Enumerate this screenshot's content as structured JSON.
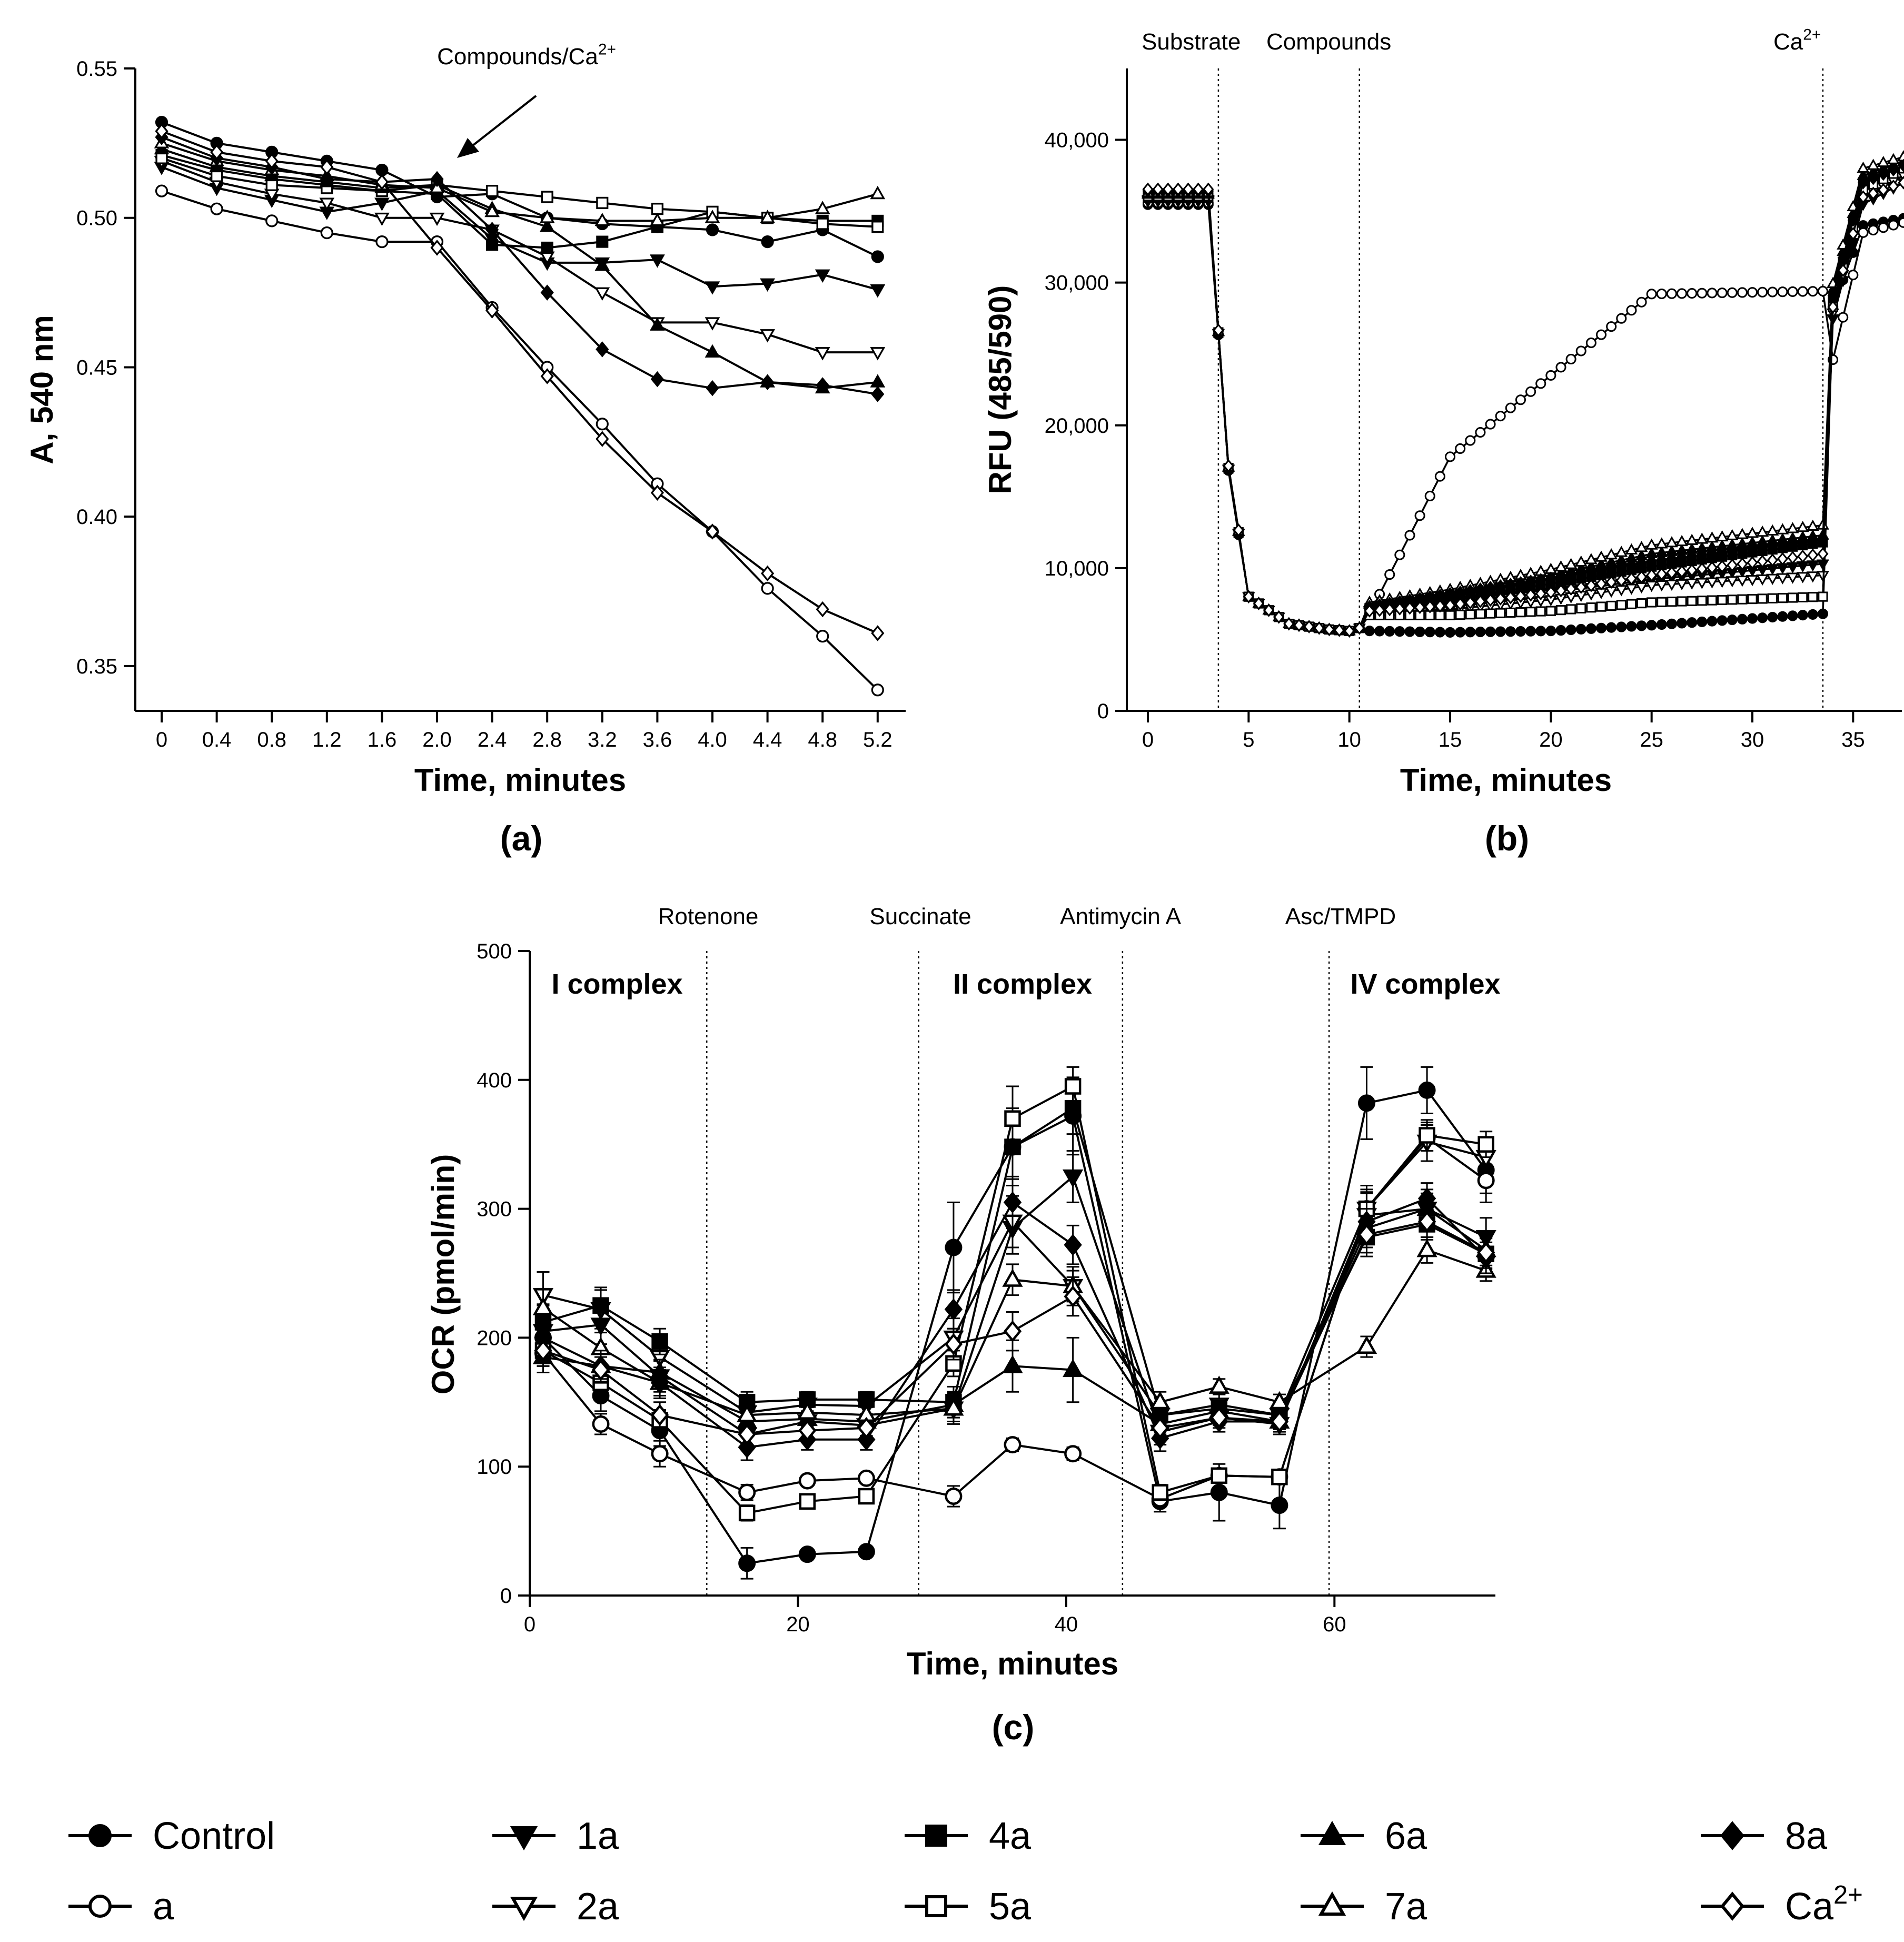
{
  "legend": {
    "entries": [
      {
        "key": "control",
        "label": "Control",
        "marker": "circle",
        "filled": true
      },
      {
        "key": "a",
        "label": "a",
        "marker": "circle",
        "filled": false
      },
      {
        "key": "1a",
        "label": "1a",
        "marker": "tri-down",
        "filled": true
      },
      {
        "key": "2a",
        "label": "2a",
        "marker": "tri-down",
        "filled": false
      },
      {
        "key": "4a",
        "label": "4a",
        "marker": "square",
        "filled": true
      },
      {
        "key": "5a",
        "label": "5a",
        "marker": "square",
        "filled": false
      },
      {
        "key": "6a",
        "label": "6a",
        "marker": "tri-up",
        "filled": true
      },
      {
        "key": "7a",
        "label": "7a",
        "marker": "tri-up",
        "filled": false
      },
      {
        "key": "8a",
        "label": "8a",
        "marker": "diamond",
        "filled": true
      },
      {
        "key": "ca",
        "label": "Ca",
        "label_sup": "2+",
        "marker": "diamond",
        "filled": false
      }
    ]
  },
  "chart_data": [
    {
      "id": "a",
      "panel_label": "(a)",
      "type": "line",
      "xlabel": "Time, minutes",
      "ylabel": "A, 540 nm",
      "ylim": [
        0.335,
        0.55
      ],
      "yticks": [
        "0.35",
        "0.40",
        "0.45",
        "0.50",
        "0.55"
      ],
      "x": [
        "0",
        "0.4",
        "0.8",
        "1.2",
        "1.6",
        "2.0",
        "2.4",
        "2.8",
        "3.2",
        "3.6",
        "4.0",
        "4.4",
        "4.8",
        "5.2"
      ],
      "annotation": {
        "text": "Compounds/Ca",
        "sup": "2+"
      },
      "series": [
        {
          "key": "control",
          "values": [
            0.532,
            0.525,
            0.522,
            0.519,
            0.516,
            0.507,
            0.508,
            0.5,
            0.498,
            0.497,
            0.496,
            0.492,
            0.496,
            0.487
          ]
        },
        {
          "key": "a",
          "values": [
            0.509,
            0.503,
            0.499,
            0.495,
            0.492,
            0.492,
            0.47,
            0.45,
            0.431,
            0.411,
            0.395,
            0.376,
            0.36,
            0.342
          ]
        },
        {
          "key": "1a",
          "values": [
            0.517,
            0.51,
            0.506,
            0.502,
            0.505,
            0.509,
            0.493,
            0.485,
            0.485,
            0.486,
            0.477,
            0.478,
            0.481,
            0.476
          ]
        },
        {
          "key": "2a",
          "values": [
            0.519,
            0.512,
            0.508,
            0.505,
            0.5,
            0.5,
            0.496,
            0.487,
            0.475,
            0.465,
            0.465,
            0.461,
            0.455,
            0.455
          ]
        },
        {
          "key": "4a",
          "values": [
            0.521,
            0.516,
            0.513,
            0.511,
            0.509,
            0.508,
            0.491,
            0.49,
            0.492,
            0.497,
            0.502,
            0.5,
            0.499,
            0.499
          ]
        },
        {
          "key": "5a",
          "values": [
            0.52,
            0.514,
            0.511,
            0.51,
            0.509,
            0.511,
            0.509,
            0.507,
            0.505,
            0.503,
            0.502,
            0.5,
            0.498,
            0.497
          ]
        },
        {
          "key": "6a",
          "values": [
            0.523,
            0.517,
            0.514,
            0.512,
            0.51,
            0.511,
            0.503,
            0.497,
            0.484,
            0.464,
            0.455,
            0.445,
            0.443,
            0.445
          ]
        },
        {
          "key": "7a",
          "values": [
            0.525,
            0.519,
            0.516,
            0.514,
            0.511,
            0.51,
            0.502,
            0.5,
            0.499,
            0.499,
            0.5,
            0.5,
            0.503,
            0.508
          ]
        },
        {
          "key": "8a",
          "values": [
            0.527,
            0.52,
            0.517,
            0.513,
            0.512,
            0.513,
            0.496,
            0.475,
            0.456,
            0.446,
            0.443,
            0.445,
            0.444,
            0.441
          ]
        },
        {
          "key": "ca",
          "values": [
            0.529,
            0.522,
            0.519,
            0.517,
            0.512,
            0.49,
            0.469,
            0.447,
            0.426,
            0.408,
            0.395,
            0.381,
            0.369,
            0.361
          ]
        }
      ]
    },
    {
      "id": "b",
      "panel_label": "(b)",
      "type": "line",
      "xlabel": "Time, minutes",
      "ylabel": "RFU (485/590)",
      "xlim": [
        0,
        37.5
      ],
      "ylim": [
        0,
        45000
      ],
      "xticks": [
        0,
        5,
        10,
        15,
        20,
        25,
        30,
        35
      ],
      "yticks": [
        0,
        10000,
        20000,
        30000,
        40000
      ],
      "ytick_labels": [
        "0",
        "10,000",
        "20,000",
        "30,000",
        "40,000"
      ],
      "vlines": [
        3.5,
        10.5,
        33.5
      ],
      "annotations": [
        {
          "text": "Substrate",
          "at": "substrate"
        },
        {
          "text": "Compounds",
          "at": "compounds"
        },
        {
          "text": "Ca",
          "sup": "2+",
          "at": "calcium"
        }
      ],
      "anchors": {
        "t": [
          0,
          3.0,
          4.0,
          5.0,
          7.0,
          9.0,
          10.0,
          10.5,
          11.0,
          15.0,
          20.0,
          25.0,
          30.0,
          33.0,
          33.5,
          34.0,
          35.0,
          36.0,
          37.5
        ],
        "shape_base": [
          36000,
          36000,
          17000,
          8000,
          6100,
          5700,
          5600,
          5800,
          6800,
          6800,
          6900,
          7000,
          7000,
          7000,
          7000,
          27500,
          31500,
          33500,
          35500
        ]
      },
      "series": [
        {
          "key": "control",
          "plateau": [
            5600,
            5500,
            5600,
            6000,
            6800
          ],
          "end": [
            34500,
            34000,
            34500
          ]
        },
        {
          "key": "a",
          "plateau": [
            6800,
            17800,
            23500,
            29200,
            29400
          ],
          "end": [
            30000,
            33500,
            34200
          ]
        },
        {
          "key": "1a",
          "plateau": [
            7000,
            7600,
            8300,
            9200,
            10300
          ],
          "end": [
            33500,
            35500,
            37000
          ]
        },
        {
          "key": "2a",
          "plateau": [
            6900,
            7100,
            7800,
            8800,
            9500
          ],
          "end": [
            34000,
            36000,
            37500
          ]
        },
        {
          "key": "4a",
          "plateau": [
            7200,
            7800,
            8900,
            10100,
            11800
          ],
          "end": [
            35000,
            37000,
            38000
          ]
        },
        {
          "key": "5a",
          "plateau": [
            6700,
            6700,
            7000,
            7600,
            8000
          ],
          "end": [
            34500,
            36500,
            38000
          ]
        },
        {
          "key": "6a",
          "plateau": [
            7500,
            8300,
            9500,
            11000,
            12300
          ],
          "end": [
            36000,
            37500,
            38500
          ]
        },
        {
          "key": "7a",
          "plateau": [
            7600,
            8500,
            9900,
            11600,
            13000
          ],
          "end": [
            36500,
            38000,
            38800
          ]
        },
        {
          "key": "8a",
          "plateau": [
            7300,
            8200,
            9300,
            10500,
            12000
          ],
          "end": [
            35500,
            37000,
            38200
          ]
        },
        {
          "key": "ca",
          "plateau": [
            7000,
            7400,
            8300,
            9500,
            11000
          ],
          "end": [
            34500,
            36000,
            37000
          ]
        }
      ]
    },
    {
      "id": "c",
      "panel_label": "(c)",
      "type": "line",
      "xlabel": "Time, minutes",
      "ylabel": "OCR (pmol/min)",
      "xlim": [
        0,
        72
      ],
      "ylim": [
        0,
        500
      ],
      "xticks": [
        0,
        20,
        40,
        60
      ],
      "yticks": [
        0,
        100,
        200,
        300,
        400,
        500
      ],
      "x": [
        1,
        5.3,
        9.7,
        16.2,
        20.7,
        25.1,
        31.6,
        36.0,
        40.5,
        47.0,
        51.4,
        55.9,
        62.4,
        66.9,
        71.3
      ],
      "vlines": [
        13.2,
        29.0,
        44.2,
        59.6
      ],
      "injections": [
        "Rotenone",
        "Succinate",
        "Antimycin A",
        "Asc/TMPD"
      ],
      "region_labels": [
        "I complex",
        "II complex",
        "IV complex"
      ],
      "series": [
        {
          "key": "control",
          "values": [
            200,
            155,
            128,
            25,
            32,
            34,
            270,
            348,
            372,
            73,
            80,
            70,
            382,
            392,
            330
          ],
          "err": [
            15,
            12,
            12,
            12,
            4,
            4,
            35,
            30,
            30,
            8,
            22,
            18,
            28,
            18,
            25
          ]
        },
        {
          "key": "a",
          "values": [
            188,
            133,
            110,
            80,
            89,
            91,
            77,
            117,
            110,
            75,
            93,
            92,
            300,
            355,
            322
          ],
          "err": [
            10,
            8,
            10,
            6,
            4,
            4,
            8,
            5,
            5,
            6,
            5,
            5,
            12,
            10,
            10
          ]
        },
        {
          "key": "1a",
          "values": [
            205,
            210,
            170,
            125,
            135,
            132,
            145,
            285,
            325,
            127,
            138,
            133,
            295,
            300,
            278
          ],
          "err": [
            20,
            15,
            12,
            10,
            8,
            8,
            12,
            20,
            20,
            10,
            8,
            8,
            18,
            15,
            15
          ]
        },
        {
          "key": "2a",
          "values": [
            233,
            222,
            185,
            142,
            148,
            147,
            200,
            290,
            240,
            140,
            148,
            140,
            300,
            352,
            340
          ],
          "err": [
            18,
            15,
            12,
            10,
            8,
            8,
            15,
            20,
            15,
            10,
            8,
            8,
            18,
            15,
            12
          ]
        },
        {
          "key": "4a",
          "values": [
            212,
            225,
            197,
            150,
            152,
            152,
            150,
            348,
            378,
            140,
            145,
            140,
            278,
            288,
            265
          ],
          "err": [
            14,
            14,
            10,
            8,
            6,
            6,
            12,
            25,
            20,
            8,
            6,
            6,
            15,
            12,
            12
          ]
        },
        {
          "key": "5a",
          "values": [
            190,
            165,
            136,
            64,
            73,
            77,
            180,
            370,
            395,
            80,
            93,
            92,
            300,
            357,
            350
          ],
          "err": [
            10,
            8,
            8,
            6,
            5,
            5,
            10,
            25,
            15,
            6,
            5,
            5,
            15,
            12,
            10
          ]
        },
        {
          "key": "6a",
          "values": [
            185,
            178,
            173,
            135,
            137,
            135,
            148,
            178,
            175,
            133,
            143,
            135,
            285,
            300,
            268
          ],
          "err": [
            12,
            10,
            10,
            8,
            6,
            6,
            10,
            20,
            25,
            8,
            6,
            6,
            15,
            12,
            12
          ]
        },
        {
          "key": "7a",
          "values": [
            223,
            192,
            165,
            140,
            142,
            140,
            145,
            245,
            240,
            150,
            162,
            150,
            193,
            268,
            252
          ],
          "err": [
            15,
            12,
            10,
            8,
            6,
            6,
            10,
            12,
            12,
            8,
            6,
            6,
            8,
            10,
            8
          ]
        },
        {
          "key": "8a",
          "values": [
            200,
            178,
            165,
            115,
            121,
            121,
            222,
            305,
            272,
            122,
            135,
            135,
            290,
            308,
            262
          ],
          "err": [
            14,
            12,
            12,
            10,
            8,
            8,
            15,
            20,
            15,
            10,
            8,
            8,
            15,
            12,
            12
          ]
        },
        {
          "key": "ca",
          "values": [
            190,
            175,
            140,
            125,
            128,
            130,
            195,
            205,
            232,
            130,
            138,
            135,
            280,
            290,
            266
          ],
          "err": [
            12,
            10,
            10,
            8,
            6,
            6,
            12,
            15,
            15,
            8,
            6,
            6,
            14,
            12,
            12
          ]
        }
      ]
    }
  ]
}
